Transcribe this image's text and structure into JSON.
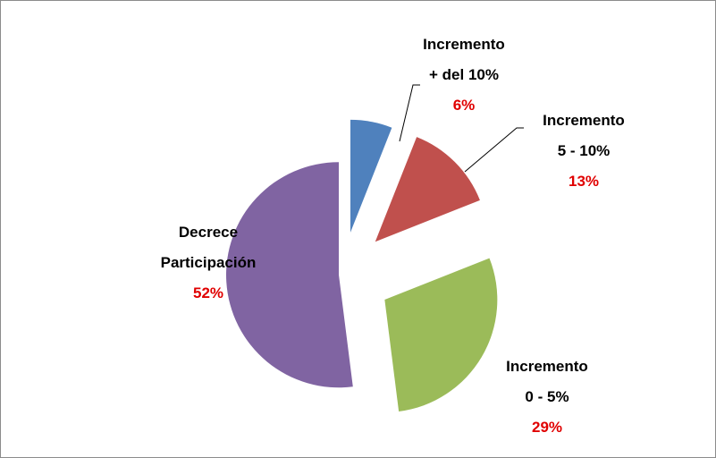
{
  "chart_data": {
    "type": "pie",
    "categories": [
      "Incremento\n+ del 10%",
      "Incremento\n5 - 10%",
      "Incremento\n0 - 5%",
      "Decrece\nParticipación"
    ],
    "values": [
      6,
      13,
      29,
      52
    ],
    "value_labels": [
      "6%",
      "13%",
      "29%",
      "52%"
    ],
    "colors": [
      "#4f81bd",
      "#c0504d",
      "#9bbb59",
      "#8064a2"
    ]
  }
}
